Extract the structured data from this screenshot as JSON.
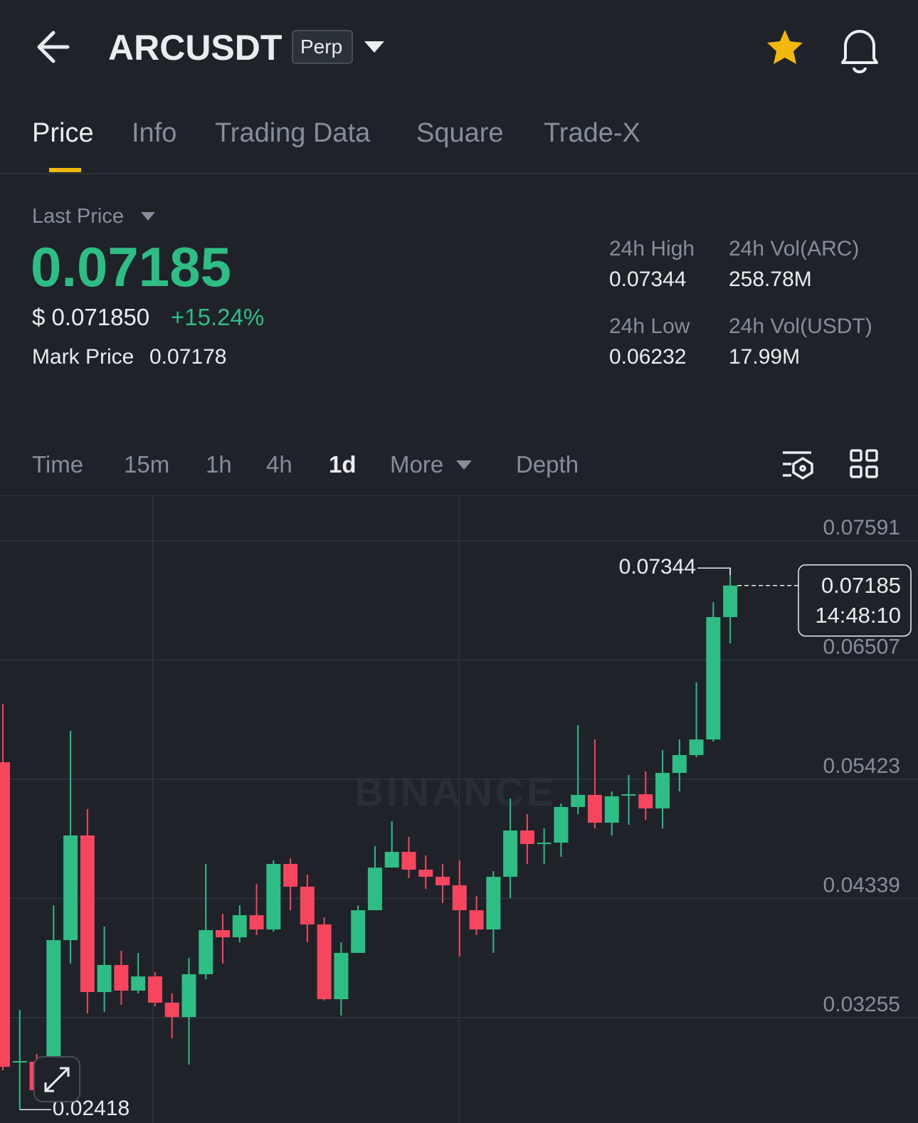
{
  "header": {
    "symbol": "ARCUSDT",
    "badge": "Perp"
  },
  "tabs": [
    "Price",
    "Info",
    "Trading Data",
    "Square",
    "Trade-X"
  ],
  "summary": {
    "last_price_label": "Last Price",
    "last_price": "0.07185",
    "usd_price": "$ 0.071850",
    "change": "+15.24%",
    "mark_price_label": "Mark Price",
    "mark_price": "0.07178"
  },
  "stats": [
    {
      "label": "24h High",
      "value": "0.07344"
    },
    {
      "label": "24h Vol(ARC)",
      "value": "258.78M"
    },
    {
      "label": "24h Low",
      "value": "0.06232"
    },
    {
      "label": "24h Vol(USDT)",
      "value": "17.99M"
    }
  ],
  "intervals": [
    "Time",
    "15m",
    "1h",
    "4h",
    "1d",
    "More",
    "Depth"
  ],
  "chart_data": {
    "type": "candlestick",
    "open": [
      0.05578,
      0.02854,
      0.02854,
      0.02679,
      0.0396,
      0.04912,
      0.03488,
      0.03734,
      0.03501,
      0.0363,
      0.03391,
      0.03261,
      0.0365,
      0.04051,
      0.03986,
      0.04187,
      0.04057,
      0.04653,
      0.04446,
      0.04103,
      0.03423,
      0.03844,
      0.04232,
      0.0462,
      0.04763,
      0.04601,
      0.04536,
      0.04459,
      0.04232,
      0.04057,
      0.04536,
      0.04957,
      0.04834,
      0.04847,
      0.05171,
      0.05281,
      0.05028,
      0.05274,
      0.05287,
      0.05158,
      0.05481,
      0.05643,
      0.05785,
      0.06898
    ],
    "high": [
      0.06109,
      0.03326,
      0.02925,
      0.04277,
      0.05863,
      0.05151,
      0.04083,
      0.03863,
      0.03844,
      0.03669,
      0.03475,
      0.03798,
      0.04653,
      0.042,
      0.04277,
      0.04472,
      0.04685,
      0.04705,
      0.04556,
      0.04167,
      0.03941,
      0.04277,
      0.04814,
      0.05041,
      0.04899,
      0.0473,
      0.04653,
      0.04685,
      0.04362,
      0.04588,
      0.05248,
      0.05106,
      0.04976,
      0.05203,
      0.05915,
      0.05785,
      0.05313,
      0.05462,
      0.05494,
      0.05688,
      0.05785,
      0.06303,
      0.07034,
      0.07344
    ],
    "low": [
      0.02776,
      0.02418,
      0.02582,
      0.02582,
      0.03747,
      0.03294,
      0.03307,
      0.03371,
      0.03475,
      0.03358,
      0.03067,
      0.02828,
      0.03604,
      0.03747,
      0.03941,
      0.04006,
      0.04038,
      0.04232,
      0.03941,
      0.0341,
      0.03274,
      0.03844,
      0.04232,
      0.0462,
      0.04523,
      0.04426,
      0.04297,
      0.03811,
      0.04006,
      0.03844,
      0.04342,
      0.04653,
      0.04653,
      0.04718,
      0.05106,
      0.04976,
      0.04912,
      0.05009,
      0.05054,
      0.04976,
      0.05313,
      0.05624,
      0.05766,
      0.06659
    ],
    "close": [
      0.02808,
      0.0286,
      0.02595,
      0.0396,
      0.04912,
      0.03488,
      0.03734,
      0.03501,
      0.0363,
      0.03391,
      0.03261,
      0.0365,
      0.04051,
      0.03986,
      0.04187,
      0.04057,
      0.04653,
      0.04446,
      0.04103,
      0.03423,
      0.03844,
      0.04232,
      0.0462,
      0.04763,
      0.04601,
      0.04536,
      0.04459,
      0.04232,
      0.04057,
      0.04536,
      0.04957,
      0.04834,
      0.04847,
      0.05171,
      0.05281,
      0.05028,
      0.05268,
      0.05287,
      0.05158,
      0.05481,
      0.05643,
      0.05785,
      0.06898,
      0.07185
    ],
    "ylim": [
      0.02297,
      0.07999
    ],
    "yticks": [
      0.07591,
      0.06507,
      0.05423,
      0.04339,
      0.03255
    ],
    "up_color": "#2ebd85",
    "down_color": "#f6465d",
    "grid": true,
    "watermark": "BINANCE",
    "countdown": "14:48:10"
  }
}
